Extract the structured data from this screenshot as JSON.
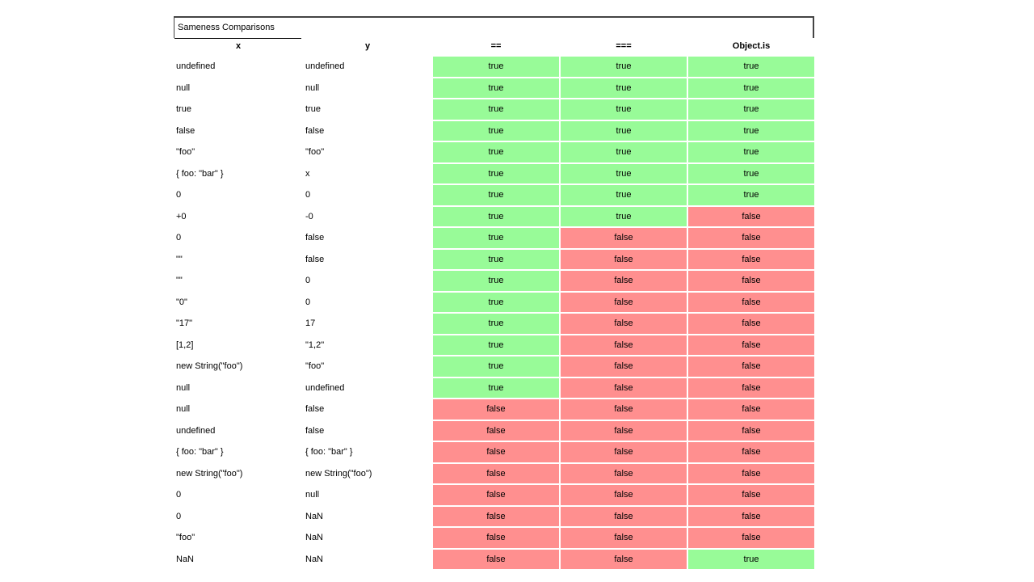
{
  "caption": "Sameness Comparisons",
  "headers": [
    "x",
    "y",
    "==",
    "===",
    "Object.is"
  ],
  "colors": {
    "true": "#98fb98",
    "false": "#ff8f8f"
  },
  "rows": [
    [
      "undefined",
      "undefined",
      "true",
      "true",
      "true"
    ],
    [
      "null",
      "null",
      "true",
      "true",
      "true"
    ],
    [
      "true",
      "true",
      "true",
      "true",
      "true"
    ],
    [
      "false",
      "false",
      "true",
      "true",
      "true"
    ],
    [
      "\"foo\"",
      "\"foo\"",
      "true",
      "true",
      "true"
    ],
    [
      "{ foo: \"bar\" }",
      "x",
      "true",
      "true",
      "true"
    ],
    [
      "0",
      "0",
      "true",
      "true",
      "true"
    ],
    [
      "+0",
      "-0",
      "true",
      "true",
      "false"
    ],
    [
      "0",
      "false",
      "true",
      "false",
      "false"
    ],
    [
      "\"\"",
      "false",
      "true",
      "false",
      "false"
    ],
    [
      "\"\"",
      "0",
      "true",
      "false",
      "false"
    ],
    [
      "\"0\"",
      "0",
      "true",
      "false",
      "false"
    ],
    [
      "\"17\"",
      "17",
      "true",
      "false",
      "false"
    ],
    [
      "[1,2]",
      "\"1,2\"",
      "true",
      "false",
      "false"
    ],
    [
      "new String(\"foo\")",
      "\"foo\"",
      "true",
      "false",
      "false"
    ],
    [
      "null",
      "undefined",
      "true",
      "false",
      "false"
    ],
    [
      "null",
      "false",
      "false",
      "false",
      "false"
    ],
    [
      "undefined",
      "false",
      "false",
      "false",
      "false"
    ],
    [
      "{ foo: \"bar\" }",
      "{ foo: \"bar\" }",
      "false",
      "false",
      "false"
    ],
    [
      "new String(\"foo\")",
      "new String(\"foo\")",
      "false",
      "false",
      "false"
    ],
    [
      "0",
      "null",
      "false",
      "false",
      "false"
    ],
    [
      "0",
      "NaN",
      "false",
      "false",
      "false"
    ],
    [
      "\"foo\"",
      "NaN",
      "false",
      "false",
      "false"
    ],
    [
      "NaN",
      "NaN",
      "false",
      "false",
      "true"
    ]
  ]
}
